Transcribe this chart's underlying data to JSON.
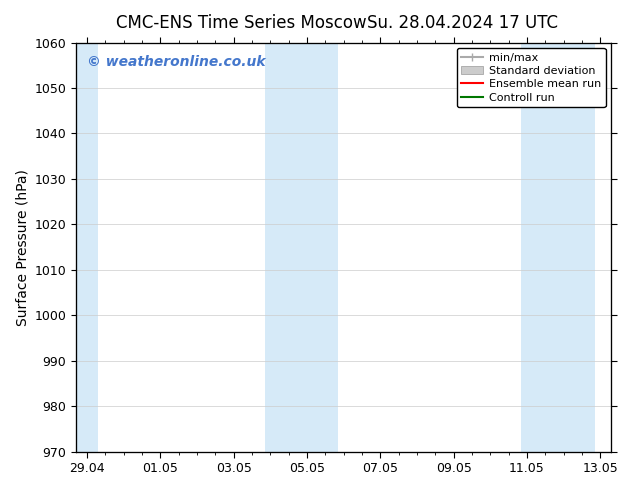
{
  "title_left": "CMC-ENS Time Series Moscow",
  "title_right": "Su. 28.04.2024 17 UTC",
  "ylabel": "Surface Pressure (hPa)",
  "ylim": [
    970,
    1060
  ],
  "yticks": [
    970,
    980,
    990,
    1000,
    1010,
    1020,
    1030,
    1040,
    1050,
    1060
  ],
  "x_tick_labels": [
    "29.04",
    "01.05",
    "03.05",
    "05.05",
    "07.05",
    "09.05",
    "11.05",
    "13.05"
  ],
  "x_tick_positions": [
    0,
    2,
    4,
    6,
    8,
    10,
    12,
    14
  ],
  "xlim": [
    -0.3,
    14.3
  ],
  "background_color": "#ffffff",
  "plot_bg_color": "#ffffff",
  "shaded_regions": [
    {
      "x_start": -0.3,
      "x_end": 0.3,
      "color": "#d6eaf8"
    },
    {
      "x_start": 4.85,
      "x_end": 6.85,
      "color": "#d6eaf8"
    },
    {
      "x_start": 11.85,
      "x_end": 13.85,
      "color": "#d6eaf8"
    }
  ],
  "watermark_text": "© weatheronline.co.uk",
  "watermark_color": "#4477cc",
  "grid_color": "#cccccc",
  "font_size_title": 12,
  "font_size_axis": 10,
  "font_size_ticks": 9,
  "font_size_legend": 8,
  "font_size_watermark": 10,
  "legend_minmax_color": "#aaaaaa",
  "legend_std_color": "#cccccc",
  "legend_ens_color": "#ff0000",
  "legend_ctrl_color": "#007700"
}
